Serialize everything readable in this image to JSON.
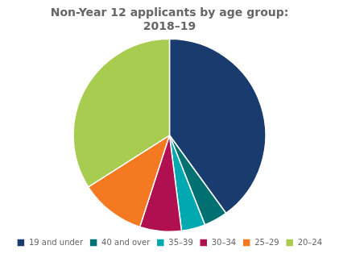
{
  "chart_data": {
    "type": "pie",
    "title": [
      "Non-Year 12 applicants by age group:",
      "2018–19"
    ],
    "categories": [
      "19 and under",
      "40 and over",
      "35–39",
      "30–34",
      "25–29",
      "20–24"
    ],
    "values": [
      40,
      4,
      4,
      7,
      11,
      34
    ],
    "colors": [
      "#1a3b6e",
      "#007070",
      "#00a8b0",
      "#b01050",
      "#f47920",
      "#a8cc50"
    ],
    "legend": "bottom",
    "data_labels": false
  }
}
